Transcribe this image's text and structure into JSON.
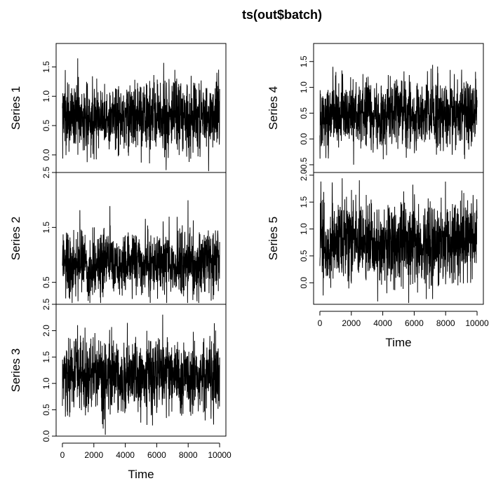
{
  "chart_data": {
    "type": "line",
    "title": "ts(out$batch)",
    "xlabel": "Time",
    "xlim": [
      0,
      10000
    ],
    "x_ticks": [
      "0",
      "2000",
      "4000",
      "6000",
      "8000",
      "10000"
    ],
    "grid": false,
    "line_color": "#000000",
    "series": [
      {
        "name": "Series 1",
        "ylim": [
          -0.3,
          1.9
        ],
        "y_ticks": [
          "0.0",
          "0.5",
          "1.0",
          "1.5"
        ],
        "mean": 0.65,
        "sd": 0.3,
        "x": [
          0,
          500,
          1000,
          1500,
          2000,
          2500,
          3000,
          3500,
          4000,
          4500,
          5000,
          5500,
          6000,
          6500,
          7000,
          7500,
          8000,
          8500,
          9000,
          9500,
          10000
        ],
        "values": [
          0.7,
          0.6,
          0.75,
          0.55,
          0.7,
          0.65,
          0.6,
          0.7,
          0.65,
          0.7,
          0.6,
          0.65,
          0.7,
          0.6,
          0.75,
          0.65,
          0.6,
          0.7,
          0.65,
          0.6,
          0.7
        ]
      },
      {
        "name": "Series 2",
        "ylim": [
          0.1,
          2.5
        ],
        "y_ticks": [
          "0.5",
          "1.5",
          "2.5"
        ],
        "mean": 0.85,
        "sd": 0.3,
        "x": [
          0,
          500,
          1000,
          1500,
          2000,
          2500,
          3000,
          3500,
          4000,
          4500,
          5000,
          5500,
          6000,
          6500,
          7000,
          7500,
          8000,
          8500,
          9000,
          9500,
          10000
        ],
        "values": [
          0.9,
          0.8,
          0.85,
          0.9,
          0.8,
          0.85,
          0.9,
          0.8,
          0.85,
          0.9,
          0.85,
          0.8,
          0.85,
          0.9,
          0.8,
          0.85,
          0.9,
          0.8,
          0.85,
          0.9,
          0.85
        ]
      },
      {
        "name": "Series 3",
        "ylim": [
          0.0,
          2.5
        ],
        "y_ticks": [
          "0.0",
          "0.5",
          "1.0",
          "1.5",
          "2.0",
          "2.5"
        ],
        "mean": 1.15,
        "sd": 0.35,
        "x": [
          0,
          500,
          1000,
          1500,
          2000,
          2500,
          3000,
          3500,
          4000,
          4500,
          5000,
          5500,
          6000,
          6500,
          7000,
          7500,
          8000,
          8500,
          9000,
          9500,
          10000
        ],
        "values": [
          1.1,
          1.15,
          1.2,
          1.1,
          1.15,
          1.1,
          1.2,
          1.15,
          1.1,
          1.2,
          1.15,
          1.1,
          1.2,
          1.15,
          1.2,
          1.1,
          1.15,
          1.2,
          1.1,
          1.15,
          1.1
        ]
      },
      {
        "name": "Series 4",
        "ylim": [
          -0.65,
          1.85
        ],
        "y_ticks": [
          "-0.5",
          "0.0",
          "0.5",
          "1.0",
          "1.5"
        ],
        "mean": 0.5,
        "sd": 0.33,
        "x": [
          0,
          500,
          1000,
          1500,
          2000,
          2500,
          3000,
          3500,
          4000,
          4500,
          5000,
          5500,
          6000,
          6500,
          7000,
          7500,
          8000,
          8500,
          9000,
          9500,
          10000
        ],
        "values": [
          0.5,
          0.45,
          0.55,
          0.5,
          0.45,
          0.5,
          0.55,
          0.5,
          0.45,
          0.5,
          0.55,
          0.5,
          0.45,
          0.5,
          0.55,
          0.5,
          0.45,
          0.5,
          0.55,
          0.5,
          0.5
        ]
      },
      {
        "name": "Series 5",
        "ylim": [
          -0.4,
          2.05
        ],
        "y_ticks": [
          "0.0",
          "0.5",
          "1.0",
          "1.5",
          "2.0"
        ],
        "mean": 0.75,
        "sd": 0.4,
        "x": [
          0,
          500,
          1000,
          1500,
          2000,
          2500,
          3000,
          3500,
          4000,
          4500,
          5000,
          5500,
          6000,
          6500,
          7000,
          7500,
          8000,
          8500,
          9000,
          9500,
          10000
        ],
        "values": [
          0.75,
          0.7,
          0.8,
          0.75,
          0.7,
          0.75,
          0.8,
          0.7,
          0.75,
          0.8,
          0.7,
          0.75,
          0.8,
          0.75,
          0.7,
          0.8,
          0.75,
          0.7,
          0.75,
          0.8,
          0.75
        ]
      }
    ]
  }
}
